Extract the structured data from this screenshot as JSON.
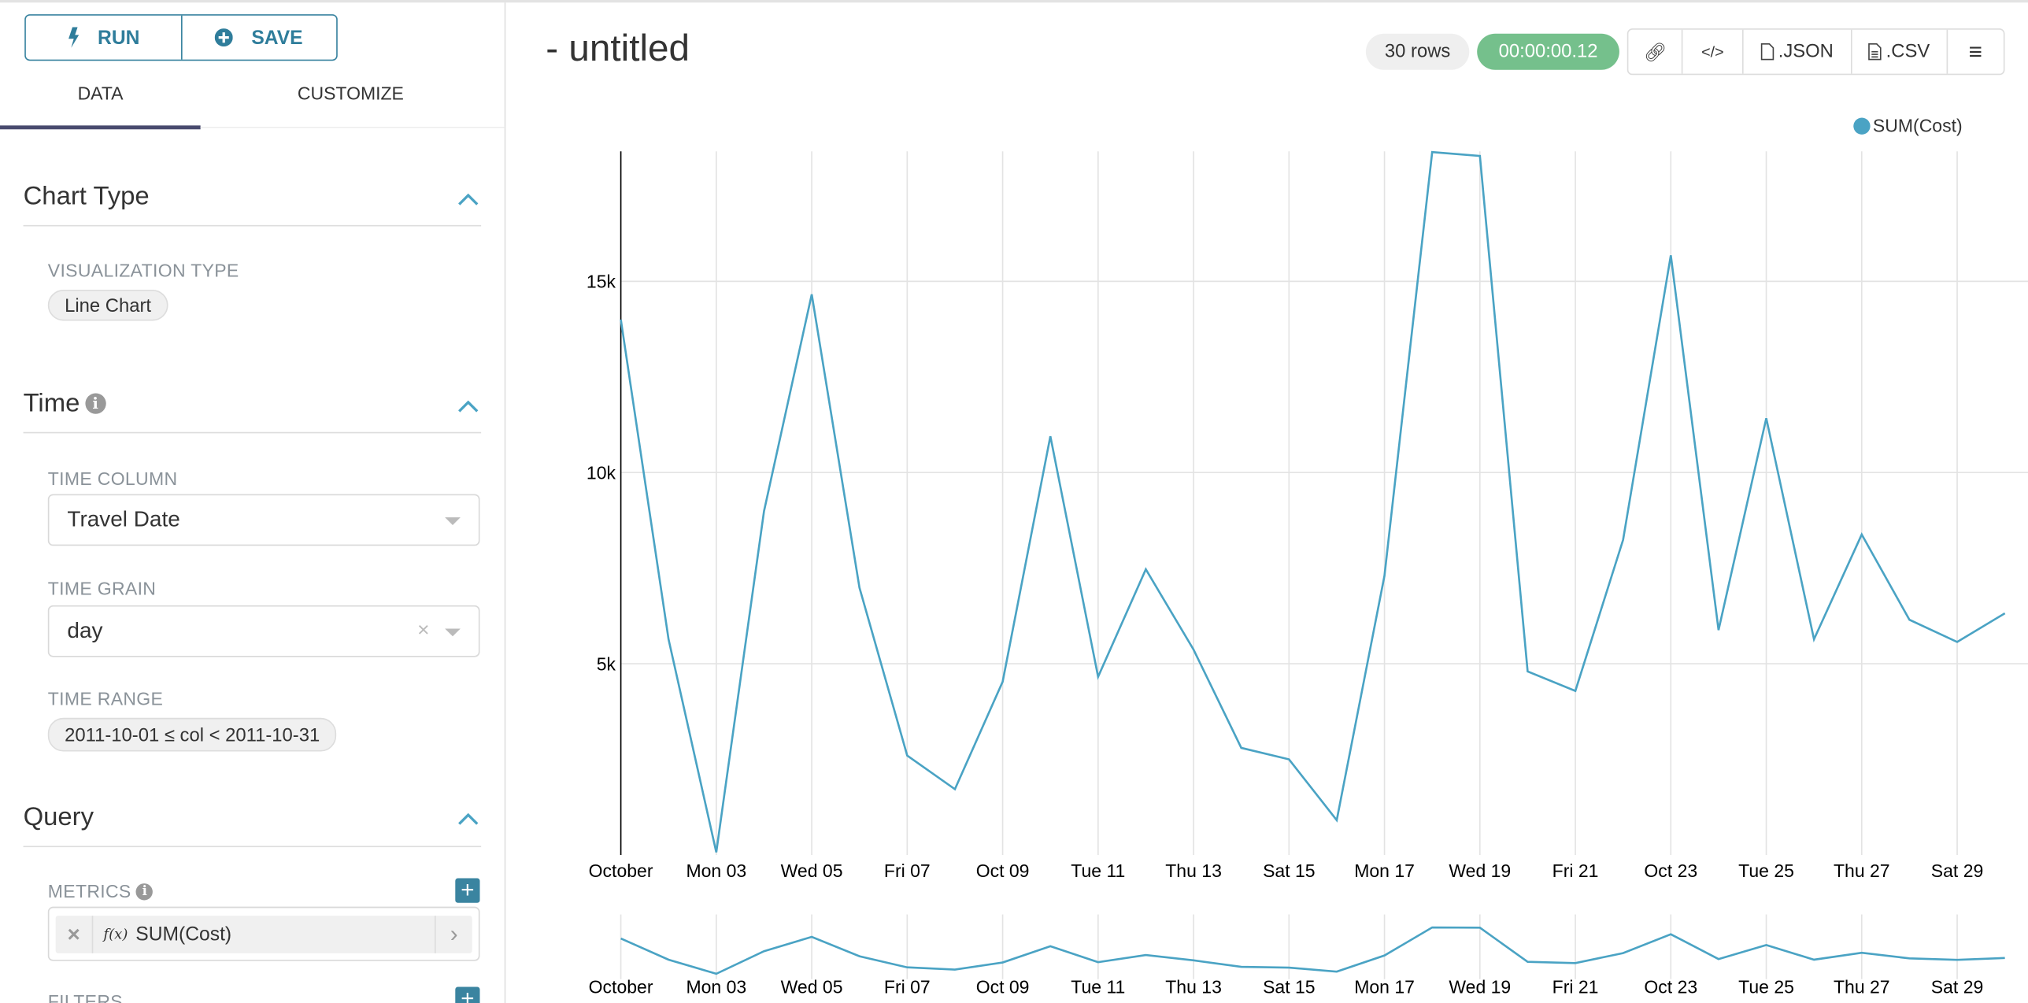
{
  "toolbar": {
    "run_label": "RUN",
    "save_label": "SAVE",
    "run_icon": "bolt-icon",
    "save_icon": "plus-circle-icon"
  },
  "tabs": [
    {
      "label": "DATA",
      "active": true
    },
    {
      "label": "CUSTOMIZE",
      "active": false
    }
  ],
  "sections": {
    "chart_type": {
      "title": "Chart Type",
      "viz_label": "VISUALIZATION TYPE",
      "viz_value": "Line Chart"
    },
    "time": {
      "title": "Time",
      "time_column_label": "TIME COLUMN",
      "time_column_value": "Travel Date",
      "time_grain_label": "TIME GRAIN",
      "time_grain_value": "day",
      "time_range_label": "TIME RANGE",
      "time_range_value": "2011-10-01 ≤ col < 2011-10-31"
    },
    "query": {
      "title": "Query",
      "metrics_label": "METRICS",
      "metric_value": "SUM(Cost)",
      "fx": "f(x)",
      "filters_label": "FILTERS"
    }
  },
  "header": {
    "title": "- untitled",
    "rows_badge": "30 rows",
    "timer_badge": "00:00:00.12",
    "json_label": ".JSON",
    "csv_label": ".CSV"
  },
  "colors": {
    "accent": "#3a84a0",
    "series": "#4aa3c4",
    "timer": "#75c08c",
    "tab_underline": "#484a6e"
  },
  "chart_data": {
    "type": "line",
    "legend": "top-right",
    "grid": true,
    "series": [
      {
        "name": "SUM(Cost)",
        "values": [
          14000,
          5640,
          70,
          8990,
          14660,
          6990,
          2600,
          1720,
          4530,
          10950,
          4660,
          7470,
          5370,
          2800,
          2500,
          910,
          7300,
          18380,
          18280,
          4800,
          4290,
          8240,
          15680,
          5880,
          11420,
          5640,
          8380,
          6150,
          5570,
          6320
        ]
      }
    ],
    "x": [
      "2011-10-01",
      "2011-10-02",
      "2011-10-03",
      "2011-10-04",
      "2011-10-05",
      "2011-10-06",
      "2011-10-07",
      "2011-10-08",
      "2011-10-09",
      "2011-10-10",
      "2011-10-11",
      "2011-10-12",
      "2011-10-13",
      "2011-10-14",
      "2011-10-15",
      "2011-10-16",
      "2011-10-17",
      "2011-10-18",
      "2011-10-19",
      "2011-10-20",
      "2011-10-21",
      "2011-10-22",
      "2011-10-23",
      "2011-10-24",
      "2011-10-25",
      "2011-10-26",
      "2011-10-27",
      "2011-10-28",
      "2011-10-29",
      "2011-10-30"
    ],
    "xtick_labels": [
      "October",
      "Mon 03",
      "Wed 05",
      "Fri 07",
      "Oct 09",
      "Tue 11",
      "Thu 13",
      "Sat 15",
      "Mon 17",
      "Wed 19",
      "Fri 21",
      "Oct 23",
      "Tue 25",
      "Thu 27",
      "Sat 29"
    ],
    "yticks": [
      5000,
      10000,
      15000
    ],
    "ytick_labels": [
      "5k",
      "10k",
      "15k"
    ],
    "ylim": [
      0,
      18400
    ]
  }
}
